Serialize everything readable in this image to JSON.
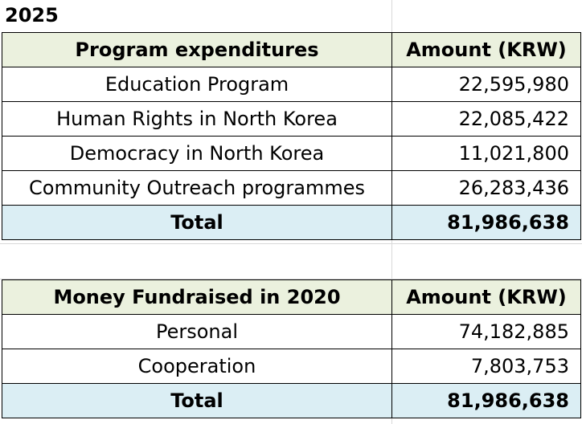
{
  "year_title": "2025",
  "program_table": {
    "header": {
      "label": "Program expenditures",
      "amount": "Amount (KRW)"
    },
    "rows": [
      {
        "label": "Education Program",
        "amount": "22,595,980"
      },
      {
        "label": "Human Rights in North Korea",
        "amount": "22,085,422"
      },
      {
        "label": "Democracy in North Korea",
        "amount": "11,021,800"
      },
      {
        "label": "Community Outreach programmes",
        "amount": "26,283,436"
      }
    ],
    "total": {
      "label": "Total",
      "amount": "81,986,638"
    }
  },
  "fundraised_table": {
    "header": {
      "label": "Money Fundraised in 2020",
      "amount": "Amount (KRW)"
    },
    "rows": [
      {
        "label": "Personal",
        "amount": "74,182,885"
      },
      {
        "label": "Cooperation",
        "amount": "7,803,753"
      }
    ],
    "total": {
      "label": "Total",
      "amount": "81,986,638"
    }
  },
  "colors": {
    "header_bg": "#ebf1de",
    "total_bg": "#dbeef4",
    "gridline": "#d9d9d9"
  }
}
